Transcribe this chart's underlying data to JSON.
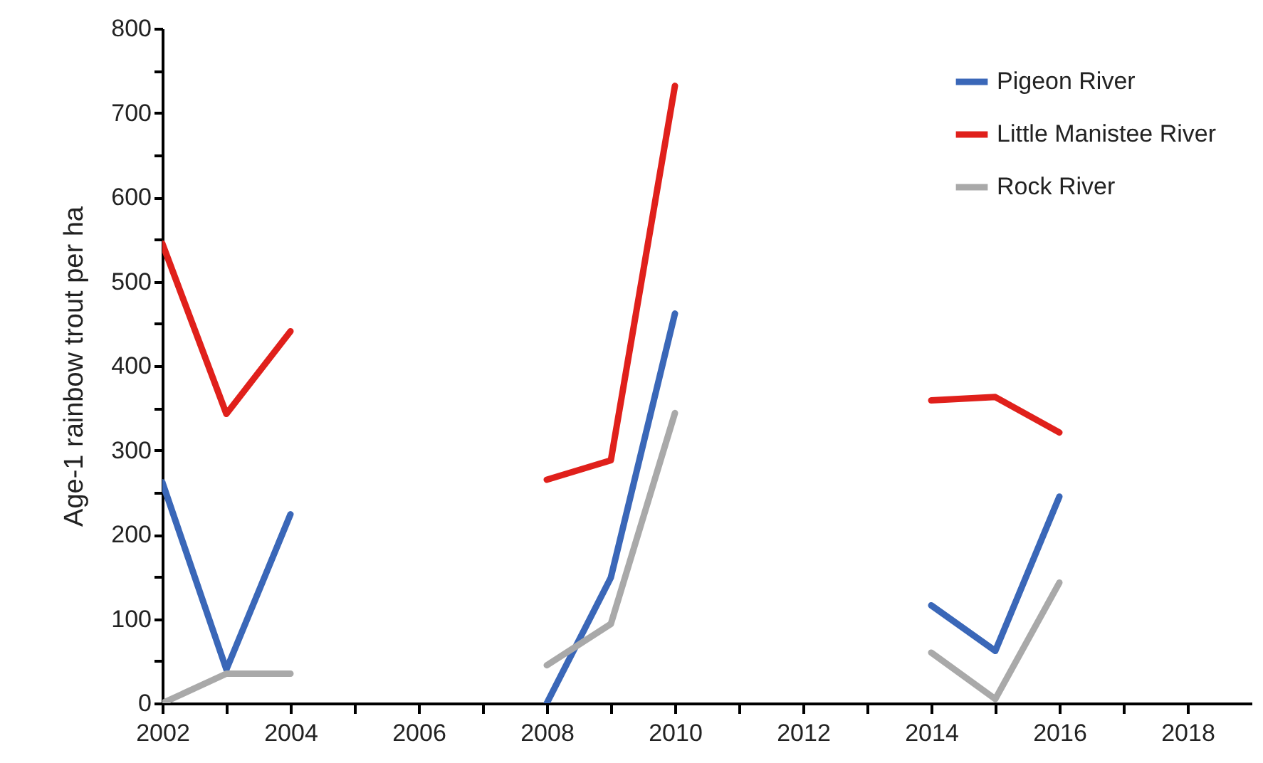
{
  "chart_data": {
    "type": "line",
    "ylabel": "Age-1 rainbow trout per ha",
    "x": [
      2002,
      2003,
      2004,
      2005,
      2006,
      2007,
      2008,
      2009,
      2010,
      2011,
      2012,
      2013,
      2014,
      2015,
      2016
    ],
    "series": [
      {
        "name": "Pigeon River",
        "color": "#3a67b8",
        "values": [
          262,
          40,
          224,
          null,
          null,
          null,
          0,
          149,
          462,
          null,
          null,
          null,
          116,
          62,
          245
        ]
      },
      {
        "name": "Little Manistee River",
        "color": "#e0201b",
        "values": [
          545,
          343,
          441,
          null,
          null,
          null,
          265,
          288,
          732,
          null,
          null,
          null,
          359,
          363,
          321
        ]
      },
      {
        "name": "Rock River",
        "color": "#a9a9a9",
        "values": [
          0,
          35,
          35,
          null,
          null,
          null,
          45,
          94,
          344,
          null,
          null,
          null,
          60,
          5,
          143
        ]
      }
    ],
    "xlim": [
      2002,
      2019
    ],
    "xticks": [
      2002,
      {
        "value": 2003,
        "label": null
      },
      2004,
      {
        "value": 2005,
        "label": null
      },
      2006,
      {
        "value": 2007,
        "label": null
      },
      2008,
      {
        "value": 2009,
        "label": null
      },
      2010,
      {
        "value": 2011,
        "label": null
      },
      2012,
      {
        "value": 2013,
        "label": null
      },
      2014,
      {
        "value": 2015,
        "label": null
      },
      2016,
      {
        "value": 2017,
        "label": null
      },
      2018
    ],
    "ylim": [
      0,
      800
    ],
    "yticks": [
      0,
      {
        "value": 50,
        "label": null
      },
      100,
      {
        "value": 150,
        "label": null
      },
      200,
      {
        "value": 250,
        "label": null
      },
      300,
      {
        "value": 350,
        "label": null
      },
      400,
      {
        "value": 450,
        "label": null
      },
      500,
      {
        "value": 550,
        "label": null
      },
      600,
      {
        "value": 650,
        "label": null
      },
      700,
      {
        "value": 750,
        "label": null
      },
      800
    ],
    "legend": "top right",
    "line_style": "solid",
    "marker": "none"
  }
}
